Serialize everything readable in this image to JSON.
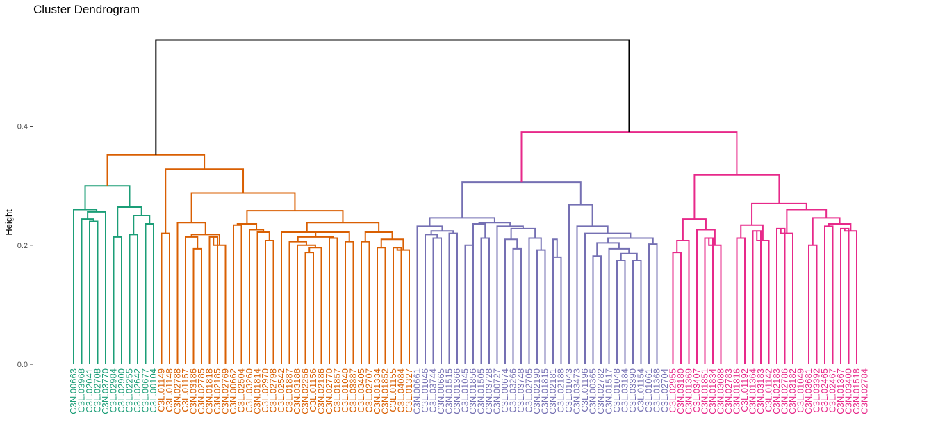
{
  "chart_data": {
    "type": "dendrogram",
    "title": "Cluster Dendrogram",
    "ylabel": "Height",
    "xlabel": "",
    "ylim": [
      0,
      0.55
    ],
    "yticks": [
      {
        "value": 0.0,
        "label": "0.0"
      },
      {
        "value": 0.2,
        "label": "0.2"
      },
      {
        "value": 0.4,
        "label": "0.4"
      }
    ],
    "grid": false,
    "root_color": "#000000",
    "clusters": [
      {
        "color": "#1b9e77",
        "labels": [
          "C3N.00663",
          "C3L.03968",
          "C3L.02041",
          "C3L.02708",
          "C3N.03770",
          "C3L.02984",
          "C3L.02900",
          "C3L.02255",
          "C3L.02642",
          "C3L.00677",
          "C3L.00104"
        ]
      },
      {
        "color": "#d95f02",
        "labels": [
          "C3L.01149",
          "C3L.01148",
          "C3N.02788",
          "C3L.01157",
          "C3N.03186",
          "C3N.02785",
          "C3N.01818",
          "C3N.02185",
          "C3N.02769",
          "C3N.00662",
          "C3L.02504",
          "C3L.03260",
          "C3N.01814",
          "C3L.02970",
          "C3L.02798",
          "C3L.02542",
          "C3L.01887",
          "C3N.03188",
          "C3N.02256",
          "C3L.01156",
          "C3N.02186",
          "C3N.02770",
          "C3L.01857",
          "C3L.01040",
          "C3L.03387",
          "C3L.03405",
          "C3L.02707",
          "C3N.01334",
          "C3N.01852",
          "C3L.01155",
          "C3L.04084",
          "C3L.01327"
        ]
      },
      {
        "color": "#7570b3",
        "labels": [
          "C3N.00661",
          "C3L.01046",
          "C3L.03744",
          "C3N.00665",
          "C3N.01515",
          "C3N.01366",
          "C3L.01045",
          "C3N.01856",
          "C3N.01505",
          "C3N.03728",
          "C3N.00727",
          "C3L.00674",
          "C3L.03266",
          "C3L.03748",
          "C3L.02705",
          "C3N.02190",
          "C3N.01815",
          "C3N.02181",
          "C3L.02188",
          "C3L.01043",
          "C3N.03473",
          "C3L.01196",
          "C3N.00365",
          "C3N.02782",
          "C3N.01517",
          "C3L.01048",
          "C3L.03184",
          "C3L.03390",
          "C3L.01154",
          "C3L.01061",
          "C3L.01368",
          "C3L.02704"
        ]
      },
      {
        "color": "#e7298a",
        "labels": [
          "C3L.02955",
          "C3N.03180",
          "C3N.01369",
          "C3L.03407",
          "C3N.01851",
          "C3N.01834",
          "C3N.03088",
          "C3N.02783",
          "C3N.01816",
          "C3L.01192",
          "C3N.01364",
          "C3N.03183",
          "C3L.01142",
          "C3N.02183",
          "C3N.02786",
          "C3N.03182",
          "C3L.01049",
          "C3N.03681",
          "C3L.03392",
          "C3L.02465",
          "C3L.02467",
          "C3N.01367",
          "C3N.03400",
          "C3N.01518",
          "C3N.02784"
        ]
      }
    ],
    "tree": [
      [
        [
          [
            [
              [
                0,
                [
                  [
                    1,
                    [
                      2,
                      3
                    ]
                  ],
                  4
                ]
              ],
              [
                [
                  5,
                  6
                ],
                [
                  [
                    7,
                    8
                  ],
                  [
                    9,
                    10
                  ]
                ]
              ]
            ],
            0.3
          ],
          [
            0,
            "c1"
          ]
        ],
        0
      ]
    ],
    "merges": [
      {
        "left": "c1",
        "right": "c2",
        "height": 0.352,
        "color": "#000000"
      }
    ],
    "tree_heights": {
      "green": {
        "top": 0.352,
        "pair_top": 0.3,
        "left": 0.26,
        "right": 0.264
      },
      "orange_top": 0.352,
      "purple_top": 0.39,
      "pink_top": 0.39,
      "root": 0.545
    }
  }
}
